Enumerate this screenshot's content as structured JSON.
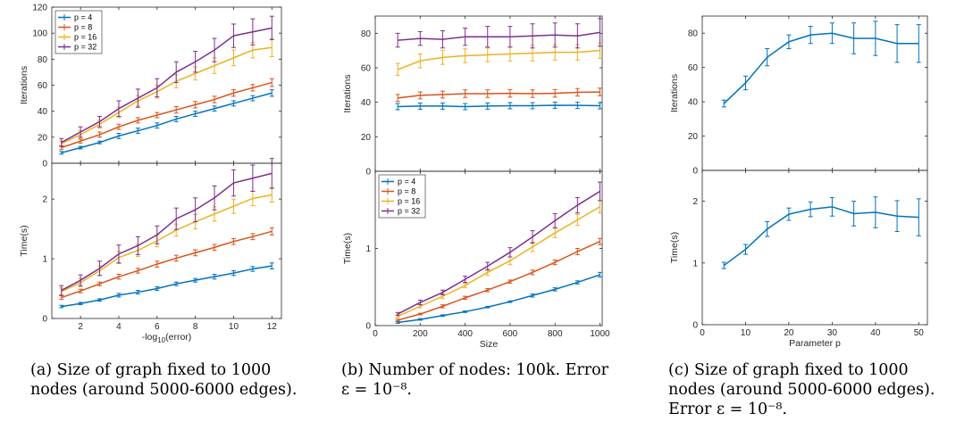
{
  "colors": {
    "p4": "#0072BD",
    "p8": "#D95319",
    "p16": "#EDB120",
    "p32": "#7E2F8E",
    "axis": "#262626"
  },
  "legend_labels": [
    "p = 4",
    "p = 8",
    "p = 16",
    "p = 32"
  ],
  "captions": {
    "a": [
      "(a) Size of graph fixed to 1000",
      "nodes (around 5000-6000 edges)."
    ],
    "b": [
      "(b) Number of nodes: 100k. Error",
      "ε = 10⁻⁸."
    ],
    "c": [
      "(c) Size of graph fixed to 1000",
      "nodes (around 5000-6000 edges).",
      "Error ε = 10⁻⁸."
    ]
  },
  "chart_data": [
    {
      "id": "a-top",
      "type": "line",
      "xlabel": "",
      "ylabel": "Iterations",
      "xlim": [
        0.5,
        12.5
      ],
      "ylim": [
        0,
        120
      ],
      "xticks": [
        2,
        4,
        6,
        8,
        10,
        12
      ],
      "yticks": [
        0,
        20,
        40,
        60,
        80,
        100,
        120
      ],
      "show_xticklabels": false,
      "legend": "top-left",
      "x": [
        1,
        2,
        3,
        4,
        5,
        6,
        7,
        8,
        9,
        10,
        11,
        12
      ],
      "series": [
        {
          "name": "p = 4",
          "color_key": "p4",
          "values": [
            8,
            12,
            16,
            21,
            25,
            29,
            34,
            38,
            42,
            46,
            50,
            54
          ],
          "err": [
            1,
            1,
            1,
            2,
            2,
            2,
            2,
            2,
            2,
            2,
            2,
            2.5
          ]
        },
        {
          "name": "p = 8",
          "color_key": "p8",
          "values": [
            12,
            17,
            22,
            28,
            33,
            37,
            41,
            45,
            49,
            54,
            58,
            62
          ],
          "err": [
            1.5,
            1.5,
            2,
            2,
            2,
            2,
            2.5,
            2.5,
            2.5,
            2.5,
            2.5,
            3
          ]
        },
        {
          "name": "p = 16",
          "color_key": "p16",
          "values": [
            15,
            22,
            30,
            39,
            48,
            55,
            63,
            69,
            75,
            81,
            87,
            89
          ],
          "err": [
            2,
            3,
            3,
            4,
            4,
            5,
            5,
            5,
            6,
            6,
            6,
            7
          ]
        },
        {
          "name": "p = 32",
          "color_key": "p32",
          "values": [
            16,
            24,
            32,
            42,
            50,
            58,
            70,
            78,
            87,
            98,
            101,
            104
          ],
          "err": [
            3,
            4,
            4,
            6,
            7,
            7,
            8,
            8,
            9,
            9,
            10,
            9
          ]
        }
      ]
    },
    {
      "id": "a-bottom",
      "type": "line",
      "xlabel": "-log10(error)",
      "ylabel": "Time(s)",
      "xlim": [
        0.5,
        12.5
      ],
      "ylim": [
        0,
        2.6
      ],
      "xticks": [
        2,
        4,
        6,
        8,
        10,
        12
      ],
      "yticks": [
        0,
        1,
        2
      ],
      "show_xticklabels": true,
      "x": [
        1,
        2,
        3,
        4,
        5,
        6,
        7,
        8,
        9,
        10,
        11,
        12
      ],
      "series": [
        {
          "name": "p = 4",
          "color_key": "p4",
          "values": [
            0.2,
            0.25,
            0.31,
            0.39,
            0.44,
            0.5,
            0.58,
            0.64,
            0.7,
            0.76,
            0.83,
            0.88
          ],
          "err": [
            0.02,
            0.02,
            0.02,
            0.03,
            0.03,
            0.03,
            0.03,
            0.03,
            0.04,
            0.04,
            0.04,
            0.05
          ]
        },
        {
          "name": "p = 8",
          "color_key": "p8",
          "values": [
            0.35,
            0.46,
            0.58,
            0.7,
            0.8,
            0.91,
            1.01,
            1.1,
            1.19,
            1.29,
            1.37,
            1.46
          ],
          "err": [
            0.03,
            0.03,
            0.03,
            0.04,
            0.04,
            0.05,
            0.05,
            0.05,
            0.05,
            0.05,
            0.05,
            0.06
          ]
        },
        {
          "name": "p = 16",
          "color_key": "p16",
          "values": [
            0.45,
            0.6,
            0.8,
            1.02,
            1.14,
            1.3,
            1.48,
            1.62,
            1.75,
            1.88,
            2.01,
            2.07
          ],
          "err": [
            0.06,
            0.07,
            0.08,
            0.1,
            0.1,
            0.1,
            0.1,
            0.12,
            0.12,
            0.12,
            0.12,
            0.12
          ]
        },
        {
          "name": "p = 32",
          "color_key": "p32",
          "values": [
            0.47,
            0.64,
            0.84,
            1.08,
            1.22,
            1.4,
            1.67,
            1.82,
            2.02,
            2.27,
            2.35,
            2.43
          ],
          "err": [
            0.08,
            0.09,
            0.12,
            0.15,
            0.15,
            0.15,
            0.18,
            0.2,
            0.2,
            0.22,
            0.22,
            0.25
          ]
        }
      ]
    },
    {
      "id": "b-top",
      "type": "line",
      "xlabel": "",
      "ylabel": "Iterations",
      "xlim": [
        0,
        1010
      ],
      "ylim": [
        0,
        90
      ],
      "xticks": [
        0,
        200,
        400,
        600,
        800,
        1000
      ],
      "yticks": [
        0,
        20,
        40,
        60,
        80
      ],
      "show_xticklabels": false,
      "x": [
        100,
        200,
        300,
        400,
        500,
        600,
        700,
        800,
        900,
        1000
      ],
      "series": [
        {
          "name": "p = 4",
          "color_key": "p4",
          "values": [
            37.5,
            37.8,
            37.8,
            37.5,
            37.8,
            38,
            38,
            38.3,
            38.2,
            38
          ],
          "err": [
            1.8,
            1.8,
            1.8,
            1.8,
            1.8,
            1.8,
            1.8,
            1.8,
            1.8,
            1.8
          ]
        },
        {
          "name": "p = 8",
          "color_key": "p8",
          "values": [
            42.5,
            44,
            44.5,
            45,
            45,
            45.2,
            45,
            45.2,
            45.8,
            46
          ],
          "err": [
            2,
            2,
            2,
            2.2,
            2.2,
            2.2,
            2.2,
            2.2,
            2.2,
            2.2
          ]
        },
        {
          "name": "p = 16",
          "color_key": "p16",
          "values": [
            59,
            64,
            66,
            67,
            67.5,
            68,
            68.5,
            69,
            69,
            70
          ],
          "err": [
            3.5,
            4,
            4,
            4,
            4,
            4,
            4.5,
            4.5,
            4.5,
            4.5
          ]
        },
        {
          "name": "p = 32",
          "color_key": "p32",
          "values": [
            76,
            77,
            76.5,
            78,
            78,
            78,
            78.5,
            79,
            78.5,
            80.5
          ],
          "err": [
            4,
            4,
            5,
            5,
            6,
            6,
            7,
            7,
            7,
            8
          ]
        }
      ]
    },
    {
      "id": "b-bottom",
      "type": "line",
      "xlabel": "Size",
      "ylabel": "Time(s)",
      "xlim": [
        0,
        1010
      ],
      "ylim": [
        0,
        2.0
      ],
      "xticks": [
        0,
        200,
        400,
        600,
        800,
        1000
      ],
      "yticks": [
        0,
        1
      ],
      "show_xticklabels": true,
      "legend": "top-left",
      "x": [
        100,
        200,
        300,
        400,
        500,
        600,
        700,
        800,
        900,
        1000
      ],
      "series": [
        {
          "name": "p = 4",
          "color_key": "p4",
          "values": [
            0.04,
            0.08,
            0.13,
            0.18,
            0.24,
            0.31,
            0.39,
            0.47,
            0.56,
            0.66
          ],
          "err": [
            0.01,
            0.01,
            0.01,
            0.01,
            0.01,
            0.01,
            0.02,
            0.02,
            0.02,
            0.03
          ]
        },
        {
          "name": "p = 8",
          "color_key": "p8",
          "values": [
            0.07,
            0.15,
            0.25,
            0.36,
            0.46,
            0.57,
            0.69,
            0.82,
            0.96,
            1.09
          ],
          "err": [
            0.01,
            0.01,
            0.02,
            0.02,
            0.02,
            0.02,
            0.03,
            0.03,
            0.04,
            0.04
          ]
        },
        {
          "name": "p = 16",
          "color_key": "p16",
          "values": [
            0.12,
            0.25,
            0.38,
            0.52,
            0.69,
            0.84,
            1.02,
            1.2,
            1.37,
            1.54
          ],
          "err": [
            0.02,
            0.02,
            0.03,
            0.03,
            0.04,
            0.05,
            0.06,
            0.06,
            0.07,
            0.08
          ]
        },
        {
          "name": "p = 32",
          "color_key": "p32",
          "values": [
            0.15,
            0.3,
            0.43,
            0.6,
            0.77,
            0.95,
            1.15,
            1.36,
            1.56,
            1.74
          ],
          "err": [
            0.02,
            0.03,
            0.03,
            0.04,
            0.05,
            0.06,
            0.08,
            0.09,
            0.1,
            0.12
          ]
        }
      ]
    },
    {
      "id": "c-top",
      "type": "line",
      "xlabel": "",
      "ylabel": "Iterations",
      "xlim": [
        0,
        52
      ],
      "ylim": [
        0,
        90
      ],
      "xticks": [
        0,
        10,
        20,
        30,
        40,
        50
      ],
      "yticks": [
        0,
        20,
        40,
        60,
        80
      ],
      "show_xticklabels": false,
      "x": [
        5,
        10,
        15,
        20,
        25,
        30,
        35,
        40,
        45,
        50
      ],
      "series": [
        {
          "name": "p",
          "color_key": "p4",
          "values": [
            39,
            51,
            66,
            75,
            79,
            80,
            77,
            77,
            74,
            74
          ],
          "err": [
            2,
            4,
            5,
            4,
            5,
            6,
            9,
            10,
            11,
            11
          ]
        }
      ]
    },
    {
      "id": "c-bottom",
      "type": "line",
      "xlabel": "Parameter p",
      "ylabel": "Time(s)",
      "xlim": [
        0,
        52
      ],
      "ylim": [
        0,
        2.5
      ],
      "xticks": [
        0,
        10,
        20,
        30,
        40,
        50
      ],
      "yticks": [
        0,
        1,
        2
      ],
      "show_xticklabels": true,
      "x": [
        5,
        10,
        15,
        20,
        25,
        30,
        35,
        40,
        45,
        50
      ],
      "series": [
        {
          "name": "p",
          "color_key": "p4",
          "values": [
            0.96,
            1.22,
            1.55,
            1.79,
            1.87,
            1.91,
            1.8,
            1.82,
            1.76,
            1.74
          ],
          "err": [
            0.05,
            0.08,
            0.12,
            0.1,
            0.12,
            0.15,
            0.2,
            0.25,
            0.25,
            0.3
          ]
        }
      ]
    }
  ]
}
